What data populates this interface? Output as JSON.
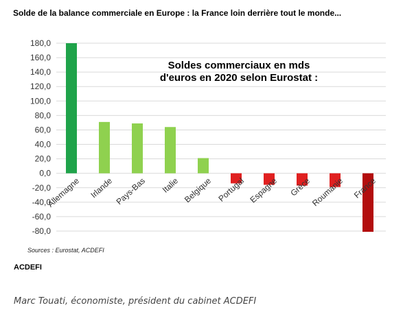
{
  "header": {
    "title": "Solde de la balance commerciale en Europe : la France loin derrière tout le monde..."
  },
  "chart_data": {
    "type": "bar",
    "annotation": [
      "Soldes commerciaux en mds",
      "d'euros en 2020 selon Eurostat :"
    ],
    "categories": [
      "Allemagne",
      "Irlande",
      "Pays-Bas",
      "Italie",
      "Belgique",
      "Portugal",
      "Espagne",
      "Grèce",
      "Roumanie",
      "France"
    ],
    "values": [
      180,
      71,
      69,
      64,
      21,
      -14,
      -16,
      -17,
      -19,
      -81
    ],
    "y_ticks": [
      "180,0",
      "160,0",
      "140,0",
      "120,0",
      "100,0",
      "80,0",
      "60,0",
      "40,0",
      "20,0",
      "0,0",
      "-20,0",
      "-40,0",
      "-60,0",
      "-80,0"
    ],
    "ylim": [
      -80,
      180
    ],
    "grid": true,
    "legend": "none",
    "bar_colors": [
      "#1fa34a",
      "#8fd14f",
      "#8fd14f",
      "#8fd14f",
      "#8fd14f",
      "#e02020",
      "#e02020",
      "#e02020",
      "#e02020",
      "#b30d0d"
    ]
  },
  "footer": {
    "source": "Sources : Eurostat, ACDEFI",
    "org": "ACDEFI",
    "caption": "Marc Touati, économiste, président du cabinet ACDEFI"
  }
}
